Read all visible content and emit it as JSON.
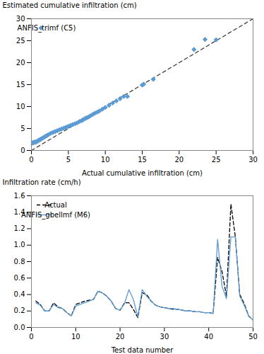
{
  "chart_data": [
    {
      "type": "scatter",
      "xlabel": "Actual cumulative infiltration (cm)",
      "ylabel": "Estimated cumulative infiltration (cm)",
      "x": [
        0.1,
        0.2,
        0.3,
        0.4,
        0.5,
        0.6,
        0.7,
        0.8,
        0.9,
        1.0,
        1.1,
        1.2,
        1.3,
        1.5,
        1.7,
        1.9,
        2.1,
        2.3,
        2.6,
        2.9,
        3.2,
        3.5,
        3.8,
        4.1,
        4.4,
        4.7,
        5.0,
        5.3,
        5.6,
        5.9,
        6.2,
        6.5,
        6.8,
        7.0,
        7.2,
        7.4,
        7.6,
        7.8,
        8.0,
        8.3,
        8.6,
        8.9,
        9.2,
        9.6,
        10.0,
        10.5,
        11.0,
        11.5,
        12.0,
        12.5,
        13.0,
        15.0,
        15.2,
        16.5,
        22.0,
        23.5,
        25.0
      ],
      "series": [
        {
          "name": "ANFIS_trimf (C5)",
          "color": "#5b9bd5",
          "marker": "diamond",
          "values": [
            1.7,
            1.75,
            1.8,
            1.85,
            1.9,
            1.95,
            2.0,
            2.1,
            2.2,
            2.3,
            2.4,
            2.5,
            2.6,
            2.8,
            3.0,
            3.2,
            3.4,
            3.6,
            3.9,
            4.1,
            4.3,
            4.5,
            4.7,
            4.9,
            5.1,
            5.3,
            5.5,
            5.7,
            5.9,
            6.1,
            6.3,
            6.6,
            6.8,
            7.0,
            7.2,
            7.4,
            7.5,
            7.7,
            7.9,
            8.2,
            8.5,
            8.7,
            9.0,
            9.4,
            9.8,
            10.3,
            10.8,
            11.3,
            11.8,
            12.3,
            12.3,
            14.9,
            15.1,
            16.2,
            23.0,
            25.3,
            25.2
          ]
        }
      ],
      "xlim": [
        0,
        30
      ],
      "ylim": [
        0,
        30
      ],
      "xticks": [
        0,
        5,
        10,
        15,
        20,
        25,
        30
      ],
      "yticks": [
        0,
        5,
        10,
        15,
        20,
        25,
        30
      ],
      "legend": "upper left",
      "grid": false
    },
    {
      "type": "line",
      "xlabel": "Test data number",
      "ylabel": "Infiltration rate (cm/h)",
      "x": [
        1,
        2,
        3,
        4,
        5,
        6,
        7,
        8,
        9,
        10,
        11,
        12,
        13,
        14,
        15,
        16,
        17,
        18,
        19,
        20,
        21,
        22,
        23,
        24,
        25,
        26,
        27,
        28,
        29,
        30,
        31,
        32,
        33,
        34,
        35,
        36,
        37,
        38,
        39,
        40,
        41,
        42,
        43,
        44,
        45,
        46,
        47,
        48,
        49,
        50
      ],
      "series": [
        {
          "name": "Actual",
          "color": "black",
          "line_style": "dashed",
          "values": [
            0.32,
            0.28,
            0.2,
            0.2,
            0.3,
            0.25,
            0.23,
            0.18,
            0.14,
            0.28,
            0.3,
            0.32,
            0.33,
            0.34,
            0.44,
            0.42,
            0.38,
            0.32,
            0.23,
            0.21,
            0.3,
            0.3,
            0.22,
            0.12,
            0.42,
            0.4,
            0.32,
            0.27,
            0.25,
            0.24,
            0.23,
            0.22,
            0.22,
            0.21,
            0.2,
            0.2,
            0.19,
            0.19,
            0.18,
            0.18,
            0.17,
            0.85,
            0.68,
            0.38,
            1.5,
            1.1,
            0.4,
            0.29,
            0.14,
            0.09
          ]
        },
        {
          "name": "ANFIS_gbellmf (M6)",
          "color": "#5b9bd5",
          "line_style": "solid",
          "values": [
            0.3,
            0.27,
            0.2,
            0.2,
            0.28,
            0.24,
            0.23,
            0.18,
            0.14,
            0.26,
            0.28,
            0.3,
            0.32,
            0.34,
            0.44,
            0.42,
            0.38,
            0.32,
            0.23,
            0.21,
            0.29,
            0.46,
            0.34,
            0.13,
            0.46,
            0.38,
            0.32,
            0.27,
            0.25,
            0.24,
            0.23,
            0.23,
            0.22,
            0.21,
            0.2,
            0.2,
            0.19,
            0.19,
            0.18,
            0.18,
            0.17,
            1.07,
            0.5,
            0.35,
            1.1,
            1.1,
            0.38,
            0.27,
            0.14,
            0.09
          ]
        }
      ],
      "xlim": [
        0,
        50
      ],
      "ylim": [
        0,
        1.6
      ],
      "xticks": [
        0,
        10,
        20,
        30,
        40,
        50
      ],
      "yticks": [
        {
          "value": 0,
          "label": "0.0"
        },
        0.2,
        0.4,
        0.6,
        0.8,
        {
          "value": 1,
          "label": "1.0"
        },
        1.2,
        1.4,
        1.6
      ],
      "legend": "upper left",
      "grid": false
    }
  ]
}
